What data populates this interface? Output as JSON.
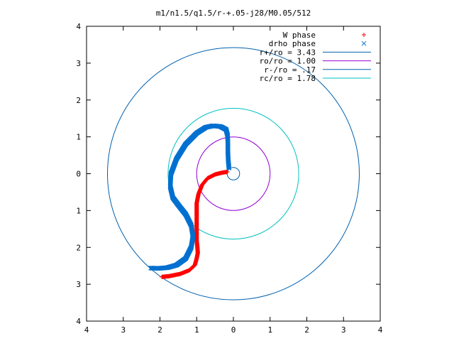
{
  "chart_data": {
    "type": "scatter",
    "title": "m1/n1.5/q1.5/r-+.05-j28/M0.05/512",
    "xlabel": "",
    "ylabel": "",
    "xlim": [
      -4,
      4
    ],
    "ylim": [
      -4,
      4
    ],
    "x_tick_values": [
      -4,
      -3,
      -2,
      -1,
      0,
      1,
      2,
      3,
      4
    ],
    "x_tick_labels": [
      "4",
      "3",
      "2",
      "1",
      "0",
      "1",
      "2",
      "3",
      "4"
    ],
    "y_tick_values": [
      -4,
      -3,
      -2,
      -1,
      0,
      1,
      2,
      3,
      4
    ],
    "y_tick_labels": [
      "4",
      "3",
      "2",
      "1",
      "0",
      "1",
      "2",
      "3",
      "4"
    ],
    "grid": false,
    "legend_position": "top-right",
    "series": [
      {
        "name": "W phase",
        "kind": "points",
        "marker": "plus",
        "color": "#ff0000",
        "x": [
          -0.16,
          -0.3,
          -0.5,
          -0.7,
          -0.85,
          -0.95,
          -1.0,
          -1.0,
          -1.0,
          -1.0,
          -1.0,
          -0.98,
          -0.97,
          -1.0,
          -1.05,
          -1.2,
          -1.45,
          -1.75,
          -1.95
        ],
        "y": [
          0.05,
          0.03,
          -0.02,
          -0.12,
          -0.3,
          -0.55,
          -0.8,
          -1.05,
          -1.3,
          -1.55,
          -1.8,
          -2.0,
          -2.15,
          -2.3,
          -2.48,
          -2.62,
          -2.72,
          -2.78,
          -2.8
        ]
      },
      {
        "name": "drho phase",
        "kind": "points",
        "marker": "cross",
        "color": "#0070d0",
        "x": [
          -0.12,
          -0.14,
          -0.15,
          -0.15,
          -0.16,
          -0.2,
          -0.35,
          -0.55,
          -0.75,
          -1.0,
          -1.3,
          -1.55,
          -1.7,
          -1.72,
          -1.65,
          -1.5,
          -1.3,
          -1.15,
          -1.1,
          -1.15,
          -1.3,
          -1.55,
          -1.8,
          -2.05,
          -2.25
        ],
        "y": [
          0.15,
          0.35,
          0.6,
          0.85,
          1.05,
          1.2,
          1.28,
          1.3,
          1.26,
          1.1,
          0.8,
          0.4,
          0.0,
          -0.35,
          -0.65,
          -0.85,
          -1.1,
          -1.4,
          -1.7,
          -2.0,
          -2.3,
          -2.48,
          -2.55,
          -2.57,
          -2.56
        ]
      },
      {
        "name": "r+/ro = 3.43",
        "kind": "circle",
        "radius": 3.43,
        "color": "#0060ad"
      },
      {
        "name": "ro/ro = 1.00",
        "kind": "circle",
        "radius": 1.0,
        "color": "#9400d3"
      },
      {
        "name": "r-/ro = .17",
        "kind": "circle",
        "radius": 0.17,
        "color": "#0060ad"
      },
      {
        "name": "rc/ro = 1.78",
        "kind": "circle",
        "radius": 1.78,
        "color": "#00c0c0"
      }
    ]
  }
}
